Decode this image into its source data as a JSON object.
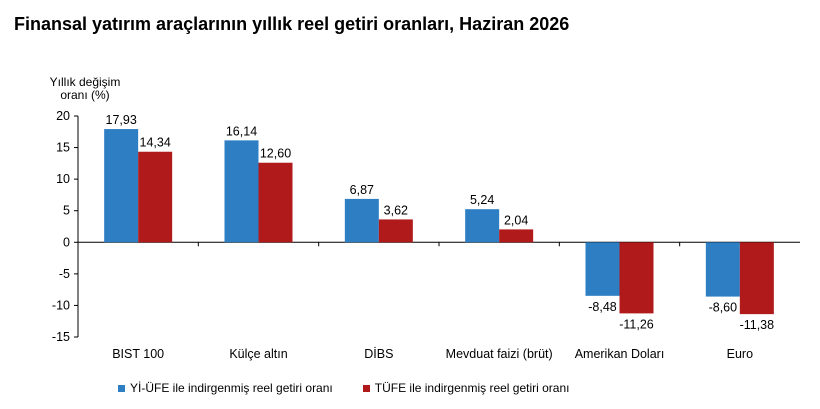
{
  "title": "Finansal yatırım araçlarının yıllık reel getiri oranları, Haziran 2026",
  "chart_data": {
    "type": "bar",
    "ylabel_lines": [
      "Yıllık değişim",
      "oranı (%)"
    ],
    "ylim": [
      -15,
      20
    ],
    "yticks": [
      20,
      15,
      10,
      5,
      0,
      -5,
      -10,
      -15
    ],
    "ytick_labels": [
      "20",
      "15",
      "10",
      "5",
      "0",
      "-5",
      "-10",
      "-15"
    ],
    "grid": false,
    "legend_position": "bottom",
    "categories": [
      "BIST 100",
      "Külçe altın",
      "DİBS",
      "Mevduat faizi (brüt)",
      "Amerikan Doları",
      "Euro"
    ],
    "series": [
      {
        "name": "Yİ-ÜFE ile indirgenmiş reel getiri oranı",
        "color": "#2e7ec4",
        "values": [
          17.93,
          16.14,
          6.87,
          5.24,
          -8.48,
          -8.6
        ],
        "labels": [
          "17,93",
          "16,14",
          "6,87",
          "5,24",
          "-8,48",
          "-8,60"
        ]
      },
      {
        "name": "TÜFE ile indirgenmiş reel getiri oranı",
        "color": "#b01a1a",
        "values": [
          14.34,
          12.6,
          3.62,
          2.04,
          -11.26,
          -11.38
        ],
        "labels": [
          "14,34",
          "12,60",
          "3,62",
          "2,04",
          "-11,26",
          "-11,38"
        ]
      }
    ]
  }
}
